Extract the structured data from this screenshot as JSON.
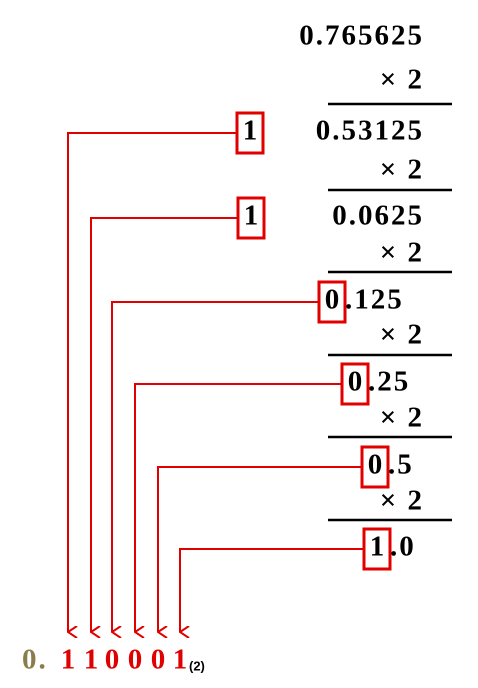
{
  "initial": "0.765625",
  "steps": [
    {
      "multiplier": "× 2",
      "digit": "1",
      "rest": "0.53125"
    },
    {
      "multiplier": "× 2",
      "digit": "1",
      "rest": "0.0625"
    },
    {
      "multiplier": "× 2",
      "digit": "0",
      "rest": ".125"
    },
    {
      "multiplier": "× 2",
      "digit": "0",
      "rest": ".25"
    },
    {
      "multiplier": "× 2",
      "digit": "0",
      "rest": ".5"
    },
    {
      "multiplier": "× 2",
      "digit": "1",
      "rest": ".0"
    }
  ],
  "result": {
    "prefix": "0.",
    "digits": [
      "1",
      "1",
      "0",
      "0",
      "0",
      "1"
    ],
    "base": "(2)"
  }
}
